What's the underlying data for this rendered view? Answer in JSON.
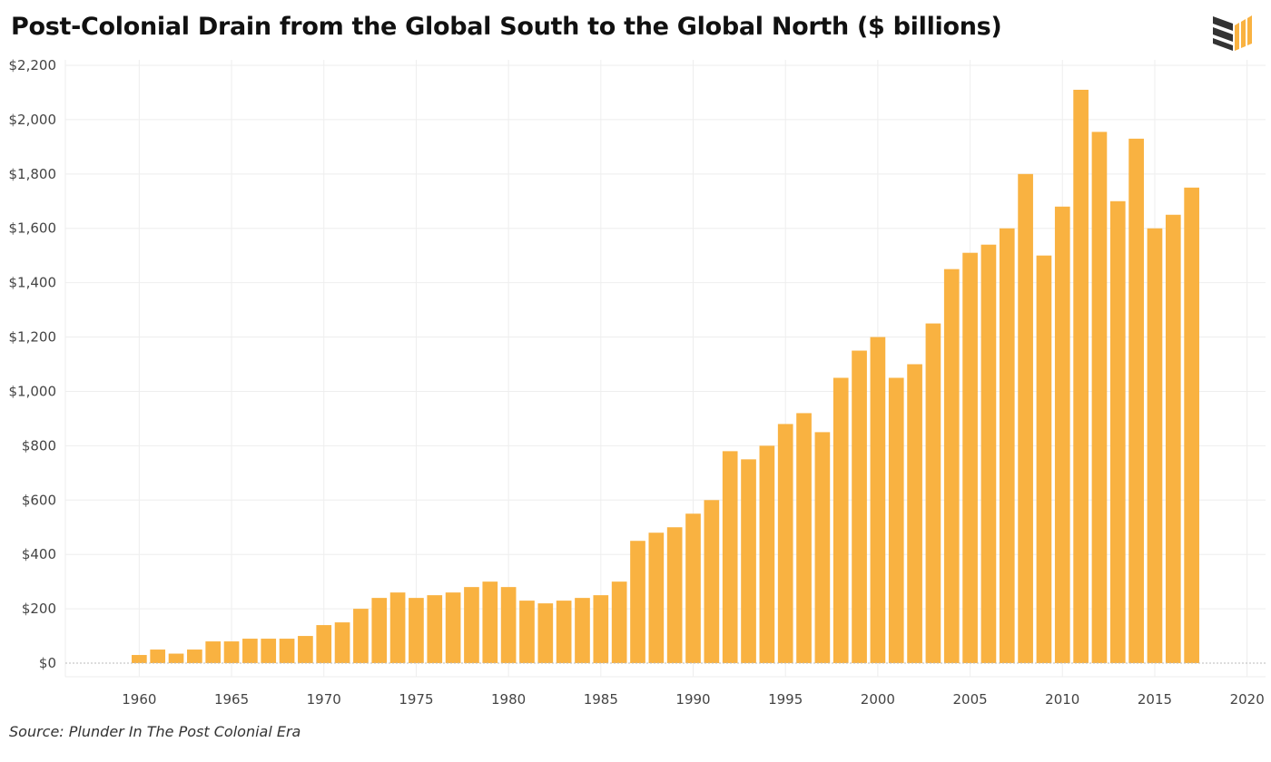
{
  "header": {
    "title": "Post-Colonial Drain from the Global South to the Global North ($ billions)",
    "logo_icon": "bar-stack-logo-icon"
  },
  "footer": {
    "source": "Source: Plunder In The Post Colonial Era"
  },
  "colors": {
    "bar": "#F9B241",
    "grid": "#EEEEEE",
    "baseline": "#BBBBBB",
    "logo_dark": "#333333",
    "logo_accent": "#F9B241"
  },
  "chart_data": {
    "type": "bar",
    "title": "Post-Colonial Drain from the Global South to the Global North ($ billions)",
    "xlabel": "",
    "ylabel": "",
    "x": [
      1960,
      1961,
      1962,
      1963,
      1964,
      1965,
      1966,
      1967,
      1968,
      1969,
      1970,
      1971,
      1972,
      1973,
      1974,
      1975,
      1976,
      1977,
      1978,
      1979,
      1980,
      1981,
      1982,
      1983,
      1984,
      1985,
      1986,
      1987,
      1988,
      1989,
      1990,
      1991,
      1992,
      1993,
      1994,
      1995,
      1996,
      1997,
      1998,
      1999,
      2000,
      2001,
      2002,
      2003,
      2004,
      2005,
      2006,
      2007,
      2008,
      2009,
      2010,
      2011,
      2012,
      2013,
      2014,
      2015,
      2016,
      2017
    ],
    "values": [
      30,
      50,
      35,
      50,
      80,
      80,
      90,
      90,
      90,
      100,
      140,
      150,
      200,
      240,
      260,
      240,
      250,
      260,
      280,
      300,
      280,
      230,
      220,
      230,
      240,
      250,
      300,
      450,
      480,
      500,
      550,
      600,
      780,
      750,
      800,
      880,
      920,
      850,
      1050,
      1150,
      1200,
      1050,
      1100,
      1250,
      1450,
      1510,
      1540,
      1600,
      1800,
      1500,
      1680,
      2110,
      1955,
      1700,
      1930,
      1600,
      1650,
      1750
    ],
    "xlim": [
      1956,
      2021
    ],
    "ylim": [
      -50,
      2220
    ],
    "x_ticks": [
      1960,
      1965,
      1970,
      1975,
      1980,
      1985,
      1990,
      1995,
      2000,
      2005,
      2010,
      2015,
      2020
    ],
    "y_ticks": [
      0,
      200,
      400,
      600,
      800,
      1000,
      1200,
      1400,
      1600,
      1800,
      2000,
      2200
    ],
    "y_tick_labels": [
      "$0",
      "$200",
      "$400",
      "$600",
      "$800",
      "$1,000",
      "$1,200",
      "$1,400",
      "$1,600",
      "$1,800",
      "$2,000",
      "$2,200"
    ],
    "grid": true,
    "legend": "none"
  }
}
